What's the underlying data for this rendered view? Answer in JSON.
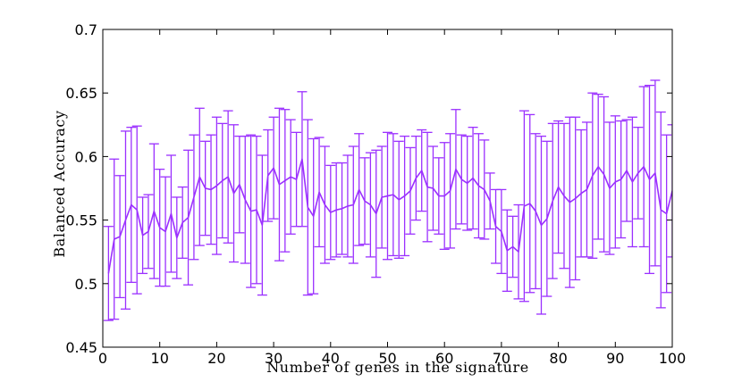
{
  "chart_data": {
    "type": "line",
    "title": "",
    "xlabel": "Number of genes in the signature",
    "ylabel": "Balanced Accuracy",
    "xlim": [
      0,
      100
    ],
    "ylim": [
      0.45,
      0.7
    ],
    "xticks": [
      0,
      10,
      20,
      30,
      40,
      50,
      60,
      70,
      80,
      90,
      100
    ],
    "yticks": [
      0.45,
      0.5,
      0.55,
      0.6,
      0.65,
      0.7
    ],
    "xtick_labels": [
      "0",
      "10",
      "20",
      "30",
      "40",
      "50",
      "60",
      "70",
      "80",
      "90",
      "100"
    ],
    "ytick_labels": [
      "0.45",
      "0.5",
      "0.55",
      "0.6",
      "0.65",
      "0.7"
    ],
    "grid": false,
    "legend": "none",
    "error_bars": true,
    "color": "#9b30ff",
    "series": [
      {
        "x": [
          1,
          2,
          3,
          4,
          5,
          6,
          7,
          8,
          9,
          10,
          11,
          12,
          13,
          14,
          15,
          16,
          17,
          18,
          19,
          20,
          21,
          22,
          23,
          24,
          25,
          26,
          27,
          28,
          29,
          30,
          31,
          32,
          33,
          34,
          35,
          36,
          37,
          38,
          39,
          40,
          41,
          42,
          43,
          44,
          45,
          46,
          47,
          48,
          49,
          50,
          51,
          52,
          53,
          54,
          55,
          56,
          57,
          58,
          59,
          60,
          61,
          62,
          63,
          64,
          65,
          66,
          67,
          68,
          69,
          70,
          71,
          72,
          73,
          74,
          75,
          76,
          77,
          78,
          79,
          80,
          81,
          82,
          83,
          84,
          85,
          86,
          87,
          88,
          89,
          90,
          91,
          92,
          93,
          94,
          95,
          96,
          97,
          98,
          99,
          100
        ],
        "y": [
          0.508,
          0.535,
          0.537,
          0.55,
          0.562,
          0.558,
          0.538,
          0.541,
          0.557,
          0.544,
          0.541,
          0.555,
          0.536,
          0.548,
          0.552,
          0.568,
          0.584,
          0.575,
          0.574,
          0.577,
          0.581,
          0.584,
          0.571,
          0.578,
          0.566,
          0.557,
          0.558,
          0.546,
          0.585,
          0.591,
          0.578,
          0.581,
          0.584,
          0.582,
          0.598,
          0.56,
          0.553,
          0.572,
          0.562,
          0.556,
          0.558,
          0.559,
          0.561,
          0.562,
          0.574,
          0.565,
          0.562,
          0.555,
          0.568,
          0.569,
          0.57,
          0.566,
          0.569,
          0.573,
          0.583,
          0.589,
          0.576,
          0.575,
          0.569,
          0.569,
          0.573,
          0.59,
          0.582,
          0.579,
          0.583,
          0.577,
          0.574,
          0.565,
          0.545,
          0.541,
          0.526,
          0.529,
          0.525,
          0.561,
          0.563,
          0.557,
          0.546,
          0.551,
          0.565,
          0.576,
          0.569,
          0.564,
          0.567,
          0.571,
          0.574,
          0.585,
          0.592,
          0.586,
          0.575,
          0.58,
          0.582,
          0.589,
          0.58,
          0.587,
          0.592,
          0.582,
          0.587,
          0.558,
          0.555,
          0.573
        ],
        "err": [
          0.037,
          0.063,
          0.048,
          0.07,
          0.061,
          0.066,
          0.03,
          0.029,
          0.053,
          0.046,
          0.043,
          0.046,
          0.032,
          0.028,
          0.053,
          0.049,
          0.054,
          0.037,
          0.043,
          0.054,
          0.045,
          0.052,
          0.054,
          0.038,
          0.05,
          0.06,
          0.058,
          0.055,
          0.036,
          0.04,
          0.06,
          0.056,
          0.045,
          0.037,
          0.053,
          0.069,
          0.061,
          0.043,
          0.046,
          0.037,
          0.037,
          0.036,
          0.04,
          0.046,
          0.044,
          0.034,
          0.041,
          0.05,
          0.04,
          0.05,
          0.048,
          0.046,
          0.047,
          0.034,
          0.033,
          0.032,
          0.043,
          0.033,
          0.03,
          0.042,
          0.045,
          0.047,
          0.035,
          0.037,
          0.04,
          0.041,
          0.039,
          0.022,
          0.029,
          0.033,
          0.032,
          0.024,
          0.037,
          0.075,
          0.07,
          0.061,
          0.07,
          0.061,
          0.061,
          0.052,
          0.057,
          0.067,
          0.064,
          0.05,
          0.053,
          0.065,
          0.057,
          0.061,
          0.052,
          0.052,
          0.046,
          0.04,
          0.051,
          0.036,
          0.063,
          0.074,
          0.073,
          0.077,
          0.062,
          0.052
        ]
      }
    ]
  }
}
